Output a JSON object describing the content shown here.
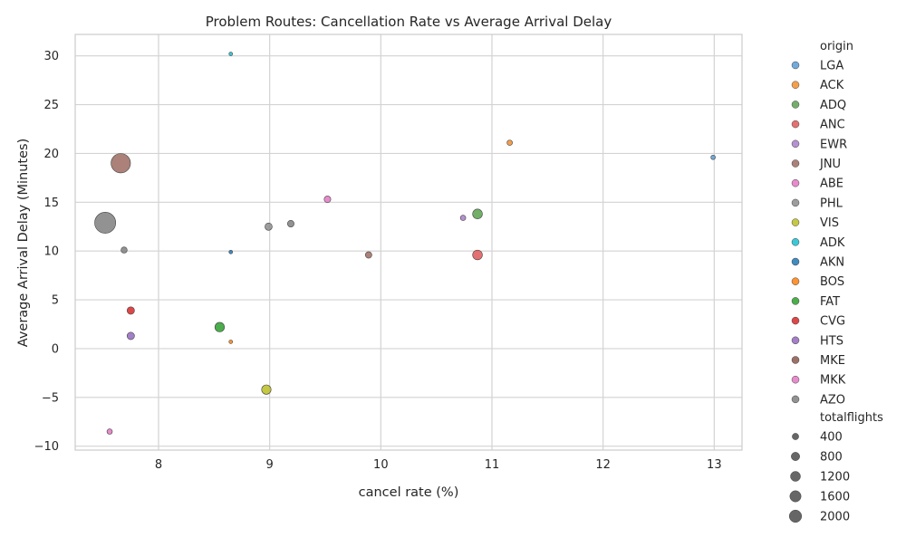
{
  "chart_data": {
    "type": "scatter",
    "title": "Problem Routes: Cancellation Rate vs Average Arrival Delay",
    "xlabel": "cancel rate (%)",
    "ylabel": "Average Arrival Delay (Minutes)",
    "xlim": [
      7.25,
      13.25
    ],
    "ylim": [
      -10.4,
      32.2
    ],
    "xticks": [
      8,
      9,
      10,
      11,
      12,
      13
    ],
    "yticks": [
      -10,
      -5,
      0,
      5,
      10,
      15,
      20,
      25,
      30
    ],
    "ytick_labels": [
      "−10",
      "−5",
      "0",
      "5",
      "10",
      "15",
      "20",
      "25",
      "30"
    ],
    "grid": true,
    "legend_position": "outside-right",
    "hue_title": "origin",
    "size_title": "totalflights",
    "size_legend": [
      400,
      800,
      1200,
      1600,
      2000
    ],
    "series": [
      {
        "name": "LGA",
        "color": "#5A9BD4",
        "points": [
          {
            "x": 12.99,
            "y": 19.6,
            "size": 90
          }
        ]
      },
      {
        "name": "ACK",
        "color": "#F28E2B",
        "points": [
          {
            "x": 11.16,
            "y": 21.1,
            "size": 130
          }
        ]
      },
      {
        "name": "ADQ",
        "color": "#59A14F",
        "points": [
          {
            "x": 10.87,
            "y": 13.8,
            "size": 430
          }
        ]
      },
      {
        "name": "ANC",
        "color": "#E15759",
        "points": [
          {
            "x": 10.87,
            "y": 9.6,
            "size": 430
          }
        ]
      },
      {
        "name": "EWR",
        "color": "#A97EC8",
        "points": [
          {
            "x": 10.74,
            "y": 13.4,
            "size": 130
          }
        ]
      },
      {
        "name": "JNU",
        "color": "#9C6B63",
        "points": [
          {
            "x": 7.66,
            "y": 19.0,
            "size": 1700
          },
          {
            "x": 9.89,
            "y": 9.6,
            "size": 190
          }
        ]
      },
      {
        "name": "ABE",
        "color": "#E377C2",
        "points": [
          {
            "x": 9.52,
            "y": 15.3,
            "size": 200
          },
          {
            "x": 7.56,
            "y": -8.5,
            "size": 130
          }
        ]
      },
      {
        "name": "PHL",
        "color": "#8C8C8C",
        "points": [
          {
            "x": 8.99,
            "y": 12.5,
            "size": 240
          }
        ]
      },
      {
        "name": "VIS",
        "color": "#BCBD22",
        "points": [
          {
            "x": 8.97,
            "y": -4.2,
            "size": 400
          }
        ]
      },
      {
        "name": "ADK",
        "color": "#17BECF",
        "points": [
          {
            "x": 8.65,
            "y": 30.2,
            "size": 60
          }
        ]
      },
      {
        "name": "AKN",
        "color": "#1F77B4",
        "points": [
          {
            "x": 8.65,
            "y": 9.9,
            "size": 60
          }
        ]
      },
      {
        "name": "BOS",
        "color": "#FF7F0E",
        "points": [
          {
            "x": 8.65,
            "y": 0.7,
            "size": 60
          }
        ]
      },
      {
        "name": "FAT",
        "color": "#2CA02C",
        "points": [
          {
            "x": 8.55,
            "y": 2.2,
            "size": 410
          }
        ]
      },
      {
        "name": "CVG",
        "color": "#D62728",
        "points": [
          {
            "x": 7.75,
            "y": 3.9,
            "size": 250
          }
        ]
      },
      {
        "name": "HTS",
        "color": "#9467BD",
        "points": [
          {
            "x": 7.75,
            "y": 1.3,
            "size": 250
          }
        ]
      },
      {
        "name": "MKE",
        "color": "#8C564B",
        "points": []
      },
      {
        "name": "MKK",
        "color": "#E377C2",
        "points": []
      },
      {
        "name": "AZO",
        "color": "#7F7F7F",
        "points": [
          {
            "x": 7.52,
            "y": 12.9,
            "size": 2000
          },
          {
            "x": 7.69,
            "y": 10.1,
            "size": 170
          },
          {
            "x": 9.19,
            "y": 12.8,
            "size": 200
          }
        ]
      }
    ]
  },
  "colors": {
    "background": "#ffffff",
    "grid": "#d3d3d3",
    "frame": "#cccccc",
    "marker_edge": "#444444",
    "size_legend_fill": "#666666"
  }
}
